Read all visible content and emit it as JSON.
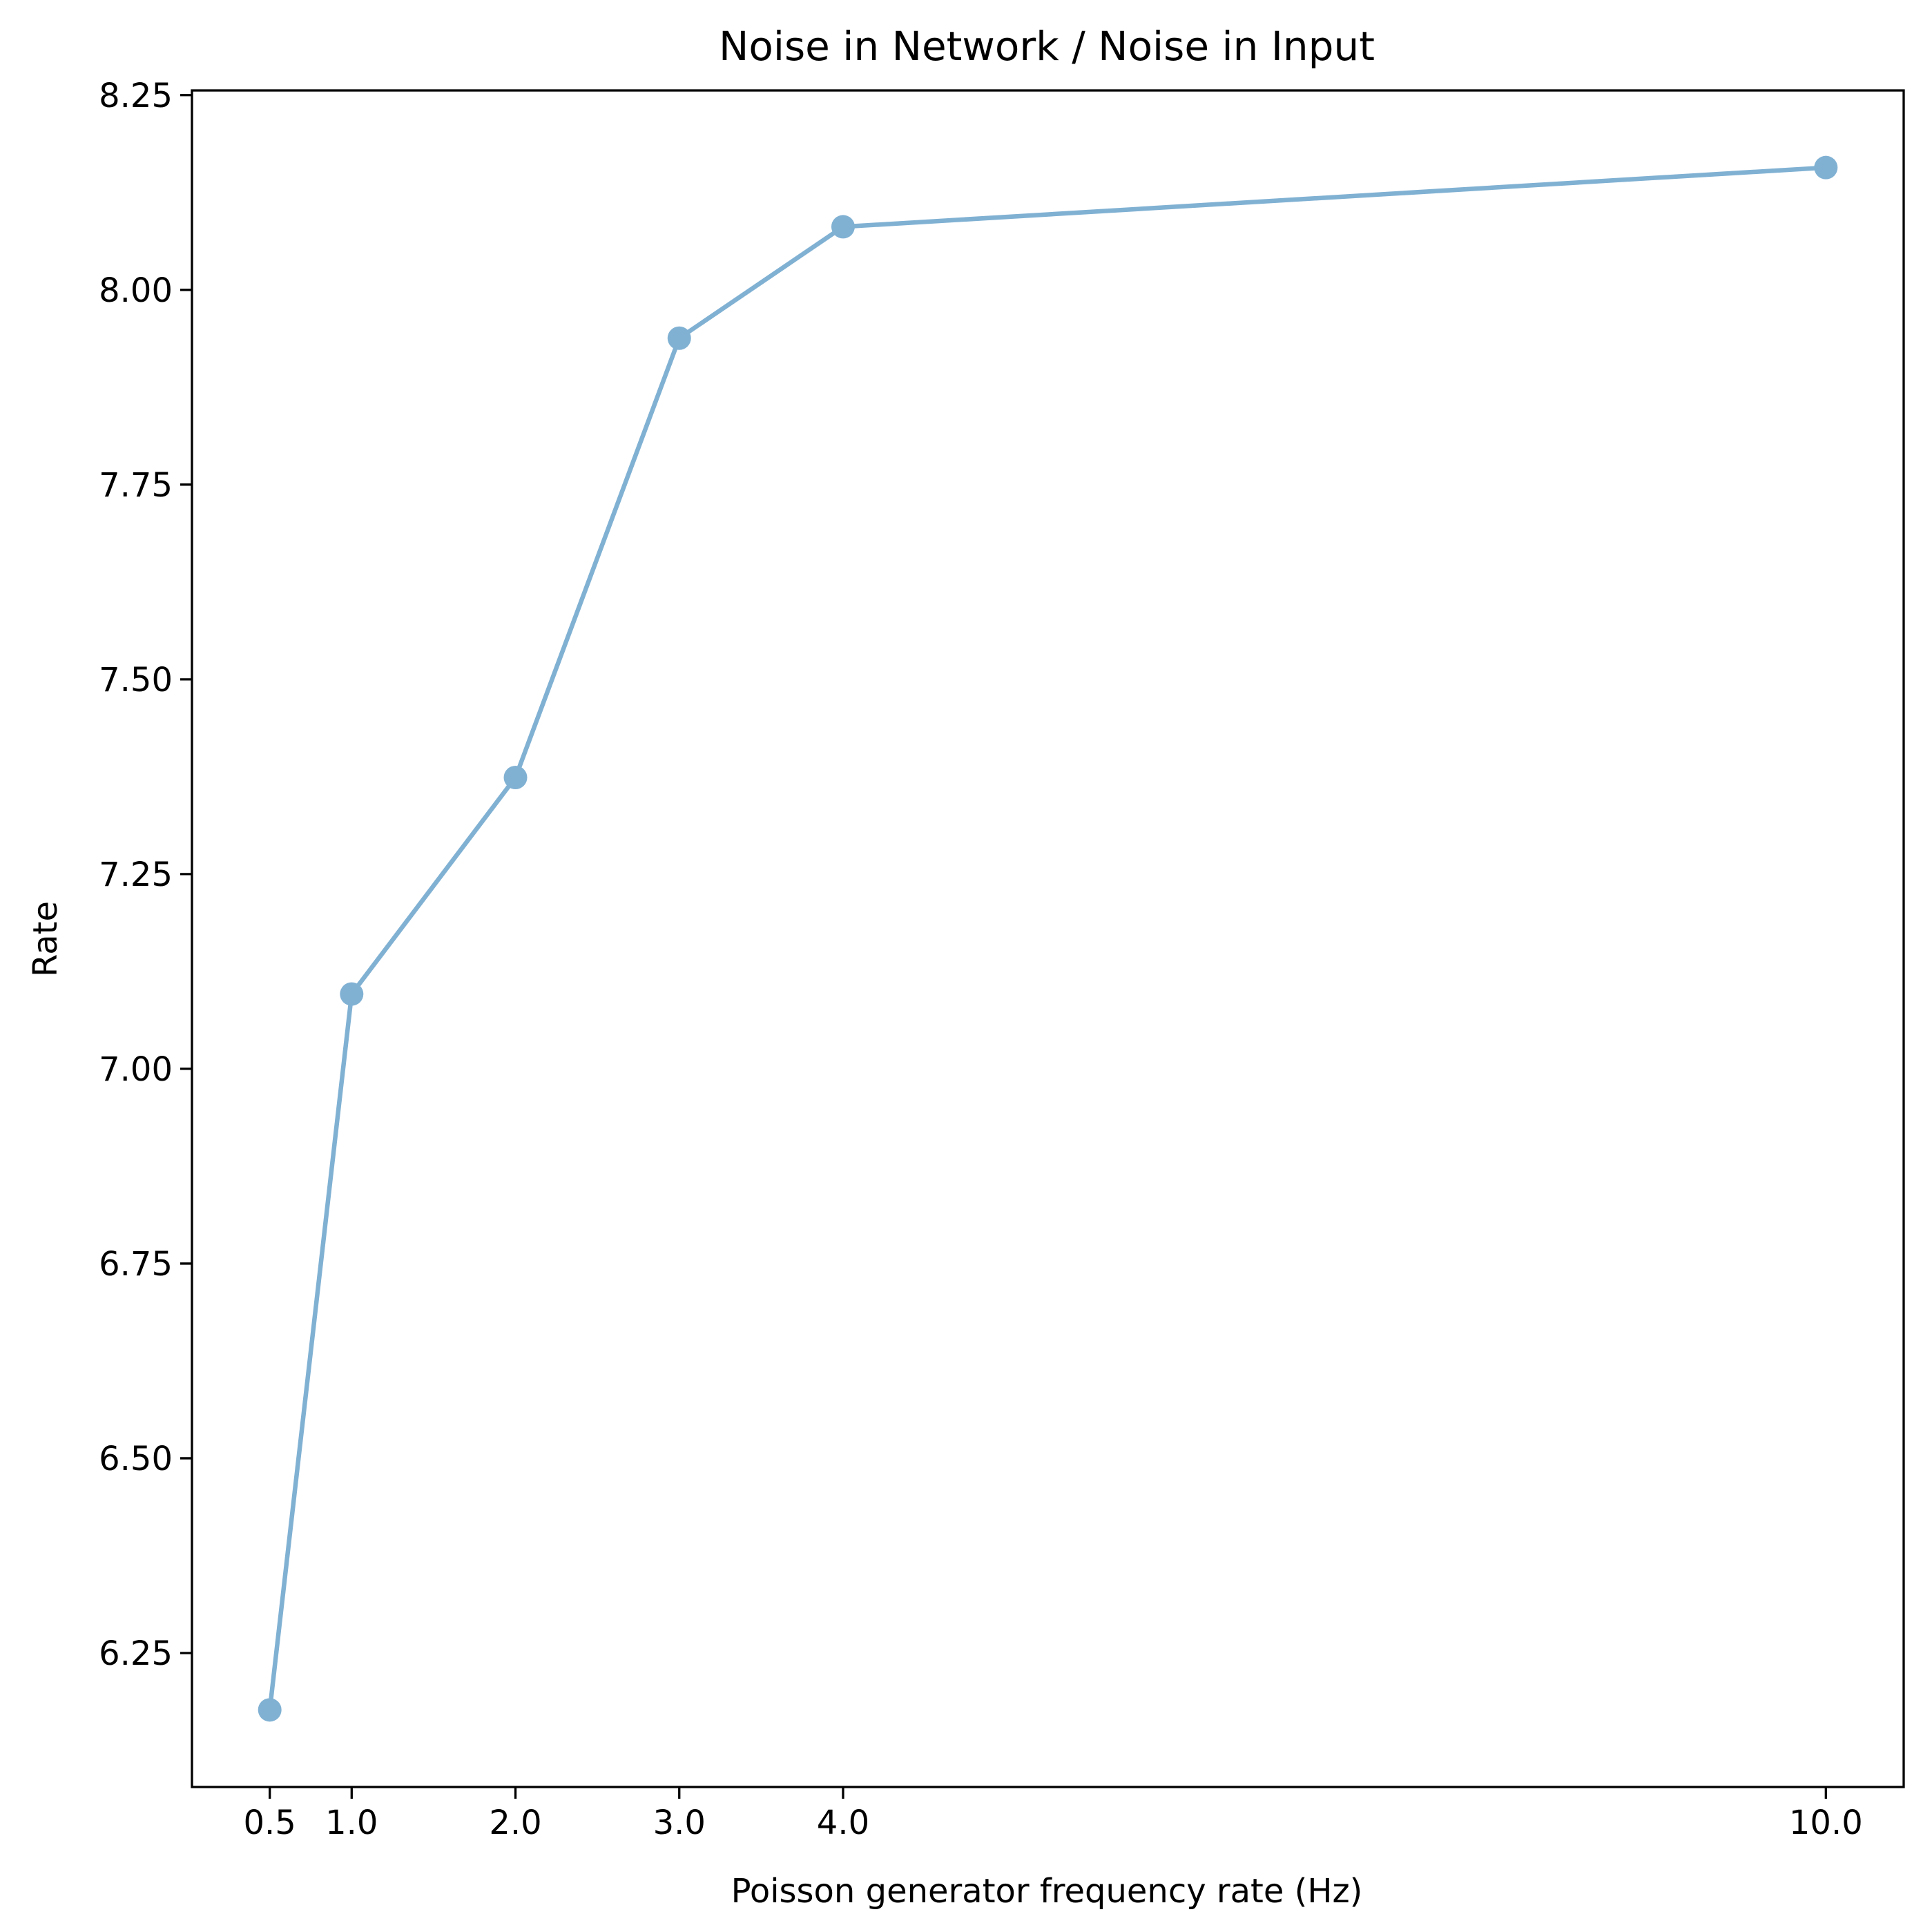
{
  "chart_data": {
    "type": "line",
    "title": "Noise in Network / Noise in Input",
    "xlabel": "Poisson generator frequency rate (Hz)",
    "ylabel": "Rate",
    "x": [
      0.5,
      1.0,
      2.0,
      3.0,
      4.0,
      10.0
    ],
    "x_tick_labels": [
      "0.5",
      "1.0",
      "2.0",
      "3.0",
      "4.0",
      "10.0"
    ],
    "series": [
      {
        "values": [
          6.177,
          7.096,
          7.374,
          7.938,
          8.081,
          8.157
        ],
        "color": "#80b1d3"
      }
    ],
    "y_ticks": [
      6.25,
      6.5,
      6.75,
      7.0,
      7.25,
      7.5,
      7.75,
      8.0,
      8.25
    ],
    "y_tick_labels": [
      "6.25",
      "6.50",
      "6.75",
      "7.00",
      "7.25",
      "7.50",
      "7.75",
      "8.00",
      "8.25"
    ],
    "xlim": [
      0.025,
      10.475
    ],
    "ylim": [
      6.078,
      8.256
    ],
    "grid": false,
    "legend": "none"
  }
}
